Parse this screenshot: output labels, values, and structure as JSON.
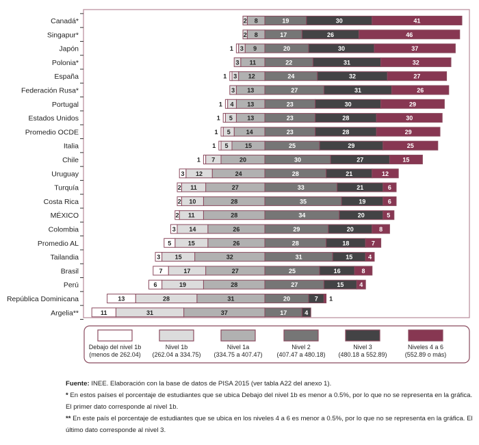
{
  "chart_data": {
    "type": "bar",
    "orientation": "horizontal-diverging-stacked",
    "title": "",
    "xlabel": "",
    "ylabel": "",
    "unit": "percent",
    "center_between": [
      "Nivel 1a",
      "Nivel 2"
    ],
    "legend_position": "bottom",
    "levels": [
      {
        "key": "below1b",
        "name": "Debajo del nivel 1b",
        "range": "(menos de 262.04)",
        "color": "#ffffff",
        "text_color": "#222222"
      },
      {
        "key": "l1b",
        "name": "Nivel 1b",
        "range": "(262.04 a 334.75)",
        "color": "#dcdcdc",
        "text_color": "#222222"
      },
      {
        "key": "l1a",
        "name": "Nivel 1a",
        "range": "(334.75 a 407.47)",
        "color": "#b1b1b1",
        "text_color": "#222222"
      },
      {
        "key": "l2",
        "name": "Nivel 2",
        "range": "(407.47 a 480.18)",
        "color": "#767676",
        "text_color": "#ffffff"
      },
      {
        "key": "l3",
        "name": "Nivel 3",
        "range": "(480.18 a 552.89)",
        "color": "#434345",
        "text_color": "#ffffff"
      },
      {
        "key": "l46",
        "name": "Niveles 4 a 6",
        "range": "(552.89 o más)",
        "color": "#873752",
        "text_color": "#ffffff"
      }
    ],
    "categories": [
      "Canadá*",
      "Singapur*",
      "Japón",
      "Polonia*",
      "España",
      "Federación Rusa*",
      "Portugal",
      "Estados Unidos",
      "Promedio OCDE",
      "Italia",
      "Chile",
      "Uruguay",
      "Turquía",
      "Costa Rica",
      "MÉXICO",
      "Colombia",
      "Promedio AL",
      "Tailandia",
      "Brasil",
      "Perú",
      "República Dominicana",
      "Argelia**"
    ],
    "series": [
      {
        "name": "Debajo del nivel 1b",
        "values": [
          null,
          null,
          1,
          null,
          1,
          null,
          1,
          1,
          1,
          1,
          1,
          3,
          2,
          2,
          2,
          3,
          5,
          3,
          7,
          6,
          13,
          11
        ]
      },
      {
        "name": "Nivel 1b",
        "values": [
          2,
          2,
          3,
          3,
          3,
          3,
          4,
          5,
          5,
          5,
          7,
          12,
          11,
          10,
          11,
          14,
          15,
          15,
          17,
          19,
          28,
          31
        ]
      },
      {
        "name": "Nivel 1a",
        "values": [
          8,
          8,
          9,
          11,
          12,
          13,
          13,
          13,
          14,
          15,
          20,
          24,
          27,
          28,
          28,
          26,
          26,
          32,
          27,
          28,
          31,
          37
        ]
      },
      {
        "name": "Nivel 2",
        "values": [
          19,
          17,
          20,
          22,
          24,
          27,
          23,
          23,
          23,
          25,
          30,
          28,
          33,
          35,
          34,
          29,
          28,
          31,
          25,
          27,
          20,
          17
        ]
      },
      {
        "name": "Nivel 3",
        "values": [
          30,
          26,
          30,
          31,
          32,
          31,
          30,
          28,
          28,
          29,
          27,
          21,
          21,
          19,
          20,
          20,
          18,
          15,
          16,
          15,
          7,
          4
        ]
      },
      {
        "name": "Niveles 4 a 6",
        "values": [
          41,
          46,
          37,
          32,
          27,
          26,
          29,
          30,
          29,
          25,
          15,
          12,
          6,
          6,
          5,
          8,
          7,
          4,
          8,
          4,
          1,
          null
        ]
      }
    ]
  },
  "notes": {
    "source_label": "Fuente:",
    "source_text": " INEE. Elaboración con la base de datos de PISA 2015 (ver tabla A22 del anexo 1).",
    "note1_mark": "*",
    "note1_text": " En estos países el porcentaje de estudiantes que se ubica Debajo del nivel 1b es menor a 0.5%, por lo que no se representa en la gráfica. El primer dato corresponde al nivel 1b.",
    "note2_mark": "**",
    "note2_text": " En este país el porcentaje de estudiantes que se ubica en los niveles 4 a 6 es menor a 0.5%, por lo que no se representa en la gráfica. El último dato corresponde al nivel 3."
  }
}
